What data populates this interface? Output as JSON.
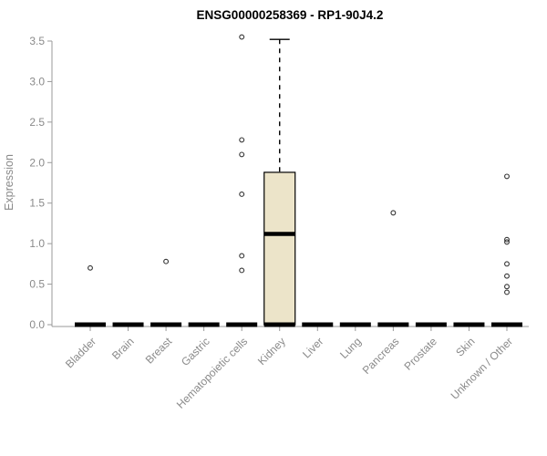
{
  "chart_data": {
    "type": "boxplot",
    "title": "ENSG00000258369 - RP1-90J4.2",
    "ylabel": "Expression",
    "xlabel": "",
    "ylim": [
      0,
      3.5
    ],
    "yticks": [
      0.0,
      0.5,
      1.0,
      1.5,
      2.0,
      2.5,
      3.0,
      3.5
    ],
    "grid": false,
    "legend": "none",
    "categories": [
      "Bladder",
      "Brain",
      "Breast",
      "Gastric",
      "Hematopoietic cells",
      "Kidney",
      "Liver",
      "Lung",
      "Pancreas",
      "Prostate",
      "Skin",
      "Unknown / Other"
    ],
    "boxes": [
      {
        "category": "Bladder",
        "whisker_low": 0,
        "q1": 0,
        "median": 0,
        "q3": 0,
        "whisker_high": 0,
        "outliers": [
          0.7
        ]
      },
      {
        "category": "Brain",
        "whisker_low": 0,
        "q1": 0,
        "median": 0,
        "q3": 0,
        "whisker_high": 0,
        "outliers": []
      },
      {
        "category": "Breast",
        "whisker_low": 0,
        "q1": 0,
        "median": 0,
        "q3": 0,
        "whisker_high": 0,
        "outliers": [
          0.78
        ]
      },
      {
        "category": "Gastric",
        "whisker_low": 0,
        "q1": 0,
        "median": 0,
        "q3": 0,
        "whisker_high": 0,
        "outliers": []
      },
      {
        "category": "Hematopoietic cells",
        "whisker_low": 0,
        "q1": 0,
        "median": 0,
        "q3": 0,
        "whisker_high": 0,
        "outliers": [
          0.67,
          0.85,
          1.61,
          2.1,
          2.28,
          3.55
        ]
      },
      {
        "category": "Kidney",
        "whisker_low": 0,
        "q1": 0,
        "median": 1.12,
        "q3": 1.88,
        "whisker_high": 3.52,
        "outliers": []
      },
      {
        "category": "Liver",
        "whisker_low": 0,
        "q1": 0,
        "median": 0,
        "q3": 0,
        "whisker_high": 0,
        "outliers": []
      },
      {
        "category": "Lung",
        "whisker_low": 0,
        "q1": 0,
        "median": 0,
        "q3": 0,
        "whisker_high": 0,
        "outliers": []
      },
      {
        "category": "Pancreas",
        "whisker_low": 0,
        "q1": 0,
        "median": 0,
        "q3": 0,
        "whisker_high": 0,
        "outliers": [
          1.38
        ]
      },
      {
        "category": "Prostate",
        "whisker_low": 0,
        "q1": 0,
        "median": 0,
        "q3": 0,
        "whisker_high": 0,
        "outliers": []
      },
      {
        "category": "Skin",
        "whisker_low": 0,
        "q1": 0,
        "median": 0,
        "q3": 0,
        "whisker_high": 0,
        "outliers": []
      },
      {
        "category": "Unknown / Other",
        "whisker_low": 0,
        "q1": 0,
        "median": 0,
        "q3": 0,
        "whisker_high": 0,
        "outliers": [
          0.4,
          0.47,
          0.6,
          0.75,
          1.02,
          1.05,
          1.83
        ]
      }
    ],
    "style": {
      "background": "#ffffff",
      "title_color": "#000000",
      "axis_color": "#9a9a9a",
      "tick_label_color": "#8a8a8a",
      "box_fill": "#ece4c9",
      "box_border": "#000000",
      "median_color": "#000000",
      "whisker_color": "#000000",
      "outlier_color": "#333333"
    }
  }
}
